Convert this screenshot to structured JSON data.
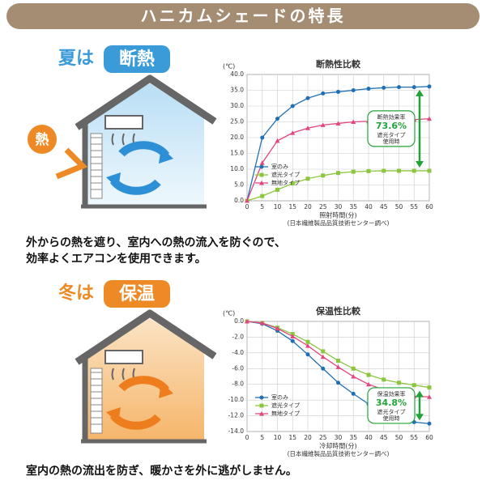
{
  "header": {
    "title": "ハニカムシェードの特長"
  },
  "sections": [
    {
      "season": "夏は",
      "feature": "断熱",
      "heat_label": "熱",
      "caption": [
        "外からの熱を遮り、室内への熱の流入を防ぐので、",
        "効率よくエアコンを使用できます。"
      ]
    },
    {
      "season": "冬は",
      "feature": "保温",
      "caption": [
        "室内の熱の流出を防ぎ、暖かさを外に逃がしません。"
      ]
    }
  ],
  "chart_data": [
    {
      "type": "line",
      "title": "断熱性比較",
      "ylabel": "(℃)",
      "xlabel": "照射時間(分)",
      "note": "(日本繊維製品品質技術センター調べ)",
      "x": [
        0,
        5,
        10,
        15,
        20,
        25,
        30,
        35,
        40,
        45,
        50,
        55,
        60
      ],
      "xlim": [
        0,
        60
      ],
      "xticks": [
        0,
        5,
        10,
        15,
        20,
        25,
        30,
        35,
        40,
        45,
        50,
        55,
        60
      ],
      "ylim": [
        0,
        40
      ],
      "yticks": [
        {
          "value": 0,
          "label": "0.0"
        },
        {
          "value": 5,
          "label": "5.0"
        },
        {
          "value": 10,
          "label": "10.0"
        },
        {
          "value": 15,
          "label": "15.0"
        },
        {
          "value": 20,
          "label": "20.0"
        },
        {
          "value": 25,
          "label": "25.0"
        },
        {
          "value": 30,
          "label": "30.0"
        },
        {
          "value": 35,
          "label": "35.0"
        },
        {
          "value": 40,
          "label": "40.0"
        }
      ],
      "grid": true,
      "legend": "lower left",
      "series": [
        {
          "name": "室のみ",
          "color": "#1f6fb5",
          "marker": "circle",
          "values": [
            0,
            20,
            26,
            30,
            32.5,
            34,
            34.5,
            35,
            35.5,
            35.8,
            36,
            36,
            36.2
          ]
        },
        {
          "name": "遮光タイプ",
          "color": "#8cc63f",
          "marker": "square",
          "values": [
            0,
            1.5,
            3.5,
            5.5,
            7,
            8,
            8.8,
            9.2,
            9.4,
            9.5,
            9.5,
            9.5,
            9.5
          ]
        },
        {
          "name": "無地タイプ",
          "color": "#e2457f",
          "marker": "triangle",
          "values": [
            0,
            12,
            19,
            21.5,
            23,
            24,
            24.5,
            25,
            25.2,
            25.5,
            25.5,
            25.7,
            26
          ]
        }
      ],
      "annotations": [
        "断熱効果率",
        "73.6%",
        "遮光タイプ",
        "使用時"
      ]
    },
    {
      "type": "line",
      "title": "保温性比較",
      "ylabel": "(℃)",
      "xlabel": "冷却時間(分)",
      "note": "(日本繊維製品品質技術センター調べ)",
      "x": [
        0,
        5,
        10,
        15,
        20,
        25,
        30,
        35,
        40,
        45,
        50,
        55,
        60
      ],
      "xlim": [
        0,
        60
      ],
      "xticks": [
        0,
        5,
        10,
        15,
        20,
        25,
        30,
        35,
        40,
        45,
        50,
        55,
        60
      ],
      "ylim": [
        -14,
        0
      ],
      "yticks": [
        {
          "value": 0,
          "label": "0.0"
        },
        {
          "value": -2,
          "label": "-2.0"
        },
        {
          "value": -4,
          "label": "-4.0"
        },
        {
          "value": -6,
          "label": "-6.0"
        },
        {
          "value": -8,
          "label": "-8.0"
        },
        {
          "value": -10,
          "label": "-10.0"
        },
        {
          "value": -12,
          "label": "-12.0"
        },
        {
          "value": -14,
          "label": "-14.0"
        }
      ],
      "grid": true,
      "legend": "lower left",
      "series": [
        {
          "name": "室のみ",
          "color": "#1f6fb5",
          "marker": "circle",
          "values": [
            0,
            -0.3,
            -1.2,
            -2.5,
            -4.2,
            -6,
            -7.8,
            -9.2,
            -10.5,
            -11.5,
            -12.3,
            -12.8,
            -13
          ]
        },
        {
          "name": "遮光タイプ",
          "color": "#8cc63f",
          "marker": "square",
          "values": [
            0,
            -0.2,
            -0.8,
            -1.6,
            -2.6,
            -3.8,
            -5,
            -6,
            -6.8,
            -7.4,
            -7.8,
            -8.1,
            -8.4
          ]
        },
        {
          "name": "無地タイプ",
          "color": "#e2457f",
          "marker": "triangle",
          "values": [
            0,
            -0.2,
            -0.9,
            -1.9,
            -3.1,
            -4.5,
            -5.8,
            -7,
            -8,
            -8.7,
            -9.2,
            -9.5,
            -9.6
          ]
        }
      ],
      "annotations": [
        "保温効果率",
        "34.8%",
        "遮光タイプ",
        "使用時"
      ]
    }
  ]
}
